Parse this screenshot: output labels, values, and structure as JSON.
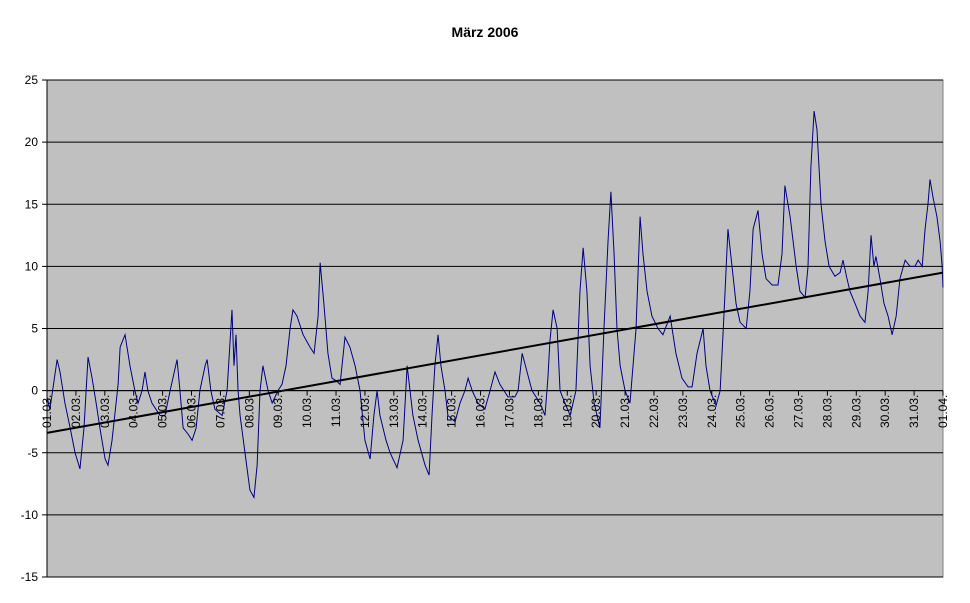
{
  "chart_data": {
    "type": "line",
    "title": "März 2006",
    "xlim": [
      0,
      31
    ],
    "ylim": [
      -15,
      25
    ],
    "yticks": [
      -15,
      -10,
      -5,
      0,
      5,
      10,
      15,
      20,
      25
    ],
    "grid": true,
    "xticks": [
      {
        "value": 0,
        "label": "01.03."
      },
      {
        "value": 1,
        "label": "02.03."
      },
      {
        "value": 2,
        "label": "03.03."
      },
      {
        "value": 3,
        "label": "04.03."
      },
      {
        "value": 4,
        "label": "05.03."
      },
      {
        "value": 5,
        "label": "06.03."
      },
      {
        "value": 6,
        "label": "07.03."
      },
      {
        "value": 7,
        "label": "08.03."
      },
      {
        "value": 8,
        "label": "09.03."
      },
      {
        "value": 9,
        "label": "10.03."
      },
      {
        "value": 10,
        "label": "11.03."
      },
      {
        "value": 11,
        "label": "12.03."
      },
      {
        "value": 12,
        "label": "13.03."
      },
      {
        "value": 13,
        "label": "14.03."
      },
      {
        "value": 14,
        "label": "15.03."
      },
      {
        "value": 15,
        "label": "16.03."
      },
      {
        "value": 16,
        "label": "17.03."
      },
      {
        "value": 17,
        "label": "18.03."
      },
      {
        "value": 18,
        "label": "19.03."
      },
      {
        "value": 19,
        "label": "20.03."
      },
      {
        "value": 20,
        "label": "21.03."
      },
      {
        "value": 21,
        "label": "22.03."
      },
      {
        "value": 22,
        "label": "23.03."
      },
      {
        "value": 23,
        "label": "24.03."
      },
      {
        "value": 24,
        "label": "25.03."
      },
      {
        "value": 25,
        "label": "26.03."
      },
      {
        "value": 26,
        "label": "27.03."
      },
      {
        "value": 27,
        "label": "28.03."
      },
      {
        "value": 28,
        "label": "29.03."
      },
      {
        "value": 29,
        "label": "30.03."
      },
      {
        "value": 30,
        "label": "31.03."
      },
      {
        "value": 31,
        "label": "01.04."
      }
    ],
    "series": [
      {
        "color": "#000080",
        "x": [
          0,
          0.1,
          0.35,
          0.45,
          0.62,
          0.8,
          0.97,
          1.14,
          1.28,
          1.42,
          1.56,
          1.7,
          1.83,
          2.01,
          2.11,
          2.25,
          2.39,
          2.46,
          2.53,
          2.7,
          2.87,
          3.04,
          3.15,
          3.29,
          3.39,
          3.49,
          3.63,
          3.91,
          4.08,
          4.26,
          4.5,
          4.6,
          4.71,
          4.88,
          5.02,
          5.16,
          5.29,
          5.47,
          5.54,
          5.67,
          5.81,
          6.06,
          6.23,
          6.4,
          6.47,
          6.54,
          6.61,
          6.68,
          6.85,
          7.02,
          7.16,
          7.27,
          7.37,
          7.47,
          7.65,
          7.79,
          7.99,
          8.13,
          8.27,
          8.41,
          8.51,
          8.65,
          8.86,
          9.1,
          9.24,
          9.38,
          9.45,
          9.58,
          9.72,
          9.86,
          10.0,
          10.14,
          10.31,
          10.48,
          10.66,
          10.83,
          11.0,
          11.18,
          11.31,
          11.42,
          11.52,
          11.73,
          11.87,
          12.11,
          12.32,
          12.46,
          12.56,
          12.66,
          12.84,
          13.08,
          13.22,
          13.32,
          13.42,
          13.53,
          13.63,
          13.77,
          13.87,
          14.12,
          14.29,
          14.46,
          14.57,
          14.71,
          14.91,
          15.15,
          15.33,
          15.5,
          15.67,
          15.95,
          16.19,
          16.3,
          16.44,
          16.61,
          16.78,
          17.06,
          17.23,
          17.33,
          17.4,
          17.51,
          17.65,
          17.75,
          17.92,
          18.1,
          18.3,
          18.44,
          18.55,
          18.68,
          18.79,
          18.93,
          19.13,
          19.27,
          19.41,
          19.51,
          19.62,
          19.72,
          19.83,
          20.0,
          20.17,
          20.38,
          20.52,
          20.62,
          20.76,
          20.93,
          21.14,
          21.31,
          21.56,
          21.76,
          21.97,
          22.18,
          22.32,
          22.49,
          22.7,
          22.8,
          22.94,
          23.15,
          23.29,
          23.42,
          23.56,
          23.7,
          23.84,
          23.98,
          24.19,
          24.32,
          24.43,
          24.6,
          24.74,
          24.88,
          25.09,
          25.29,
          25.43,
          25.53,
          25.71,
          25.92,
          26.05,
          26.23,
          26.33,
          26.43,
          26.54,
          26.64,
          26.78,
          26.92,
          27.06,
          27.26,
          27.44,
          27.54,
          27.68,
          27.78,
          27.96,
          28.13,
          28.3,
          28.41,
          28.51,
          28.61,
          28.68,
          28.82,
          28.96,
          29.1,
          29.24,
          29.38,
          29.51,
          29.69,
          29.86,
          30.03,
          30.14,
          30.28,
          30.38,
          30.48,
          30.55,
          30.66,
          30.79,
          30.9,
          30.97,
          31.0
        ],
        "values": [
          -0.5,
          -1.5,
          2.5,
          1.5,
          -1,
          -3,
          -5,
          -6.3,
          -3,
          2.7,
          1,
          -1,
          -3,
          -5.5,
          -6,
          -4,
          -1,
          0.5,
          3.5,
          4.5,
          2,
          0,
          -1,
          0,
          1.5,
          0,
          -1,
          -2,
          -2,
          0,
          2.5,
          0,
          -3,
          -3.5,
          -4,
          -3,
          0,
          2,
          2.5,
          0,
          -1.5,
          -2,
          0,
          6.5,
          2,
          4.5,
          0,
          -2,
          -5,
          -8,
          -8.6,
          -6,
          0,
          2,
          0,
          -1,
          0,
          0.5,
          2,
          5,
          6.5,
          6,
          4.5,
          3.5,
          3,
          6,
          10.3,
          7,
          3,
          1,
          0.8,
          0.5,
          4.3,
          3.5,
          2,
          0,
          -4,
          -5.5,
          -2,
          0,
          -2,
          -4,
          -5,
          -6.2,
          -4,
          2,
          0,
          -2,
          -4,
          -6,
          -6.8,
          -2,
          2,
          4.5,
          2,
          0,
          -2,
          -2.5,
          -1,
          0,
          1,
          0,
          -1,
          -1.5,
          0,
          1.5,
          0.5,
          -0.5,
          -0.5,
          0,
          3,
          1.5,
          0,
          -1,
          -2,
          1,
          4,
          6.5,
          5,
          0,
          -1,
          -2,
          0,
          8,
          11.5,
          8,
          2,
          -1,
          -3,
          5,
          12,
          16,
          11,
          5,
          2,
          0,
          -1,
          5,
          14,
          11,
          8,
          6,
          5,
          4.5,
          6,
          3,
          1,
          0.3,
          0.3,
          3,
          5,
          2,
          0,
          -1.2,
          0,
          6,
          13,
          10,
          7,
          5.5,
          5,
          8,
          13,
          14.5,
          11,
          9,
          8.5,
          8.5,
          11,
          16.5,
          14,
          10,
          8,
          7.5,
          10,
          18,
          22.5,
          21,
          15,
          12,
          10,
          9.2,
          9.5,
          10.5,
          9,
          8,
          7,
          6,
          5.5,
          8,
          12.5,
          10,
          10.8,
          9,
          7,
          6,
          4.5,
          6,
          9,
          10.5,
          10,
          10,
          10.5,
          10,
          13,
          15,
          17,
          15.5,
          14,
          12,
          10,
          8.3
        ]
      },
      {
        "color": "#000000",
        "x": [
          0,
          31
        ],
        "values": [
          -3.4,
          9.5
        ]
      }
    ]
  }
}
